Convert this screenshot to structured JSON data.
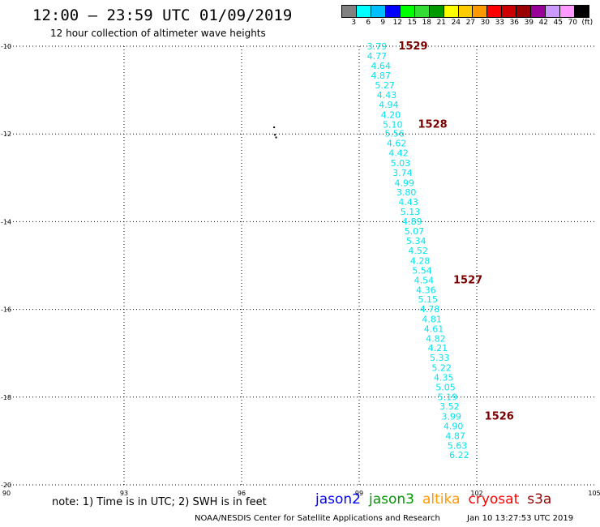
{
  "header": {
    "title": "12:00 – 23:59 UTC 01/09/2019",
    "subtitle": "12 hour collection of altimeter wave heights"
  },
  "legend": {
    "colors": [
      "#808080",
      "#00ffff",
      "#00bfff",
      "#0000ff",
      "#00ff00",
      "#33dd33",
      "#009900",
      "#ffff00",
      "#ffcc00",
      "#ff9900",
      "#ff0000",
      "#cc0000",
      "#990000",
      "#990099",
      "#cc99ff",
      "#ff99ff",
      "#000000"
    ],
    "labels": [
      "3",
      "6",
      "9",
      "12",
      "15",
      "18",
      "21",
      "24",
      "27",
      "30",
      "33",
      "36",
      "39",
      "42",
      "45",
      "70",
      "(ft)"
    ]
  },
  "chart_data": {
    "type": "scatter",
    "x_range": [
      90,
      105
    ],
    "y_range": [
      -20,
      -10
    ],
    "x_ticks": [
      "90",
      "93",
      "96",
      "99",
      "102",
      "105"
    ],
    "y_ticks": [
      "-10",
      "-12",
      "-14",
      "-16",
      "-18",
      "-20"
    ],
    "grid": true,
    "point_color": "#00e5ee",
    "pass_label_color": "#7a0000",
    "points": [
      {
        "lon": 99.2,
        "lat": -10.0,
        "v": "3.79"
      },
      {
        "lon": 99.2,
        "lat": -10.22,
        "v": "4.77"
      },
      {
        "lon": 99.3,
        "lat": -10.44,
        "v": "4.64"
      },
      {
        "lon": 99.3,
        "lat": -10.67,
        "v": "4.87"
      },
      {
        "lon": 99.4,
        "lat": -10.89,
        "v": "5.27"
      },
      {
        "lon": 99.45,
        "lat": -11.11,
        "v": "4.43"
      },
      {
        "lon": 99.5,
        "lat": -11.33,
        "v": "4.94"
      },
      {
        "lon": 99.55,
        "lat": -11.56,
        "v": "4.20"
      },
      {
        "lon": 99.6,
        "lat": -11.78,
        "v": "5.10"
      },
      {
        "lon": 99.65,
        "lat": -11.99,
        "v": "5.56"
      },
      {
        "lon": 99.7,
        "lat": -12.21,
        "v": "4.62"
      },
      {
        "lon": 99.75,
        "lat": -12.43,
        "v": "4.42"
      },
      {
        "lon": 99.8,
        "lat": -12.66,
        "v": "5.03"
      },
      {
        "lon": 99.85,
        "lat": -12.88,
        "v": "3.74"
      },
      {
        "lon": 99.9,
        "lat": -13.11,
        "v": "4.99"
      },
      {
        "lon": 99.95,
        "lat": -13.33,
        "v": "3.80"
      },
      {
        "lon": 100.0,
        "lat": -13.55,
        "v": "4.43"
      },
      {
        "lon": 100.05,
        "lat": -13.77,
        "v": "5.13"
      },
      {
        "lon": 100.1,
        "lat": -13.99,
        "v": "4.89"
      },
      {
        "lon": 100.15,
        "lat": -14.21,
        "v": "5.07"
      },
      {
        "lon": 100.2,
        "lat": -14.44,
        "v": "5.34"
      },
      {
        "lon": 100.25,
        "lat": -14.66,
        "v": "4.52"
      },
      {
        "lon": 100.3,
        "lat": -14.89,
        "v": "4.28"
      },
      {
        "lon": 100.35,
        "lat": -15.11,
        "v": "5.54"
      },
      {
        "lon": 100.4,
        "lat": -15.33,
        "v": "4.54"
      },
      {
        "lon": 100.45,
        "lat": -15.55,
        "v": "4.36"
      },
      {
        "lon": 100.5,
        "lat": -15.77,
        "v": "5.15"
      },
      {
        "lon": 100.55,
        "lat": -15.99,
        "v": "4.78"
      },
      {
        "lon": 100.6,
        "lat": -16.22,
        "v": "4.81"
      },
      {
        "lon": 100.65,
        "lat": -16.44,
        "v": "4.61"
      },
      {
        "lon": 100.7,
        "lat": -16.66,
        "v": "4.82"
      },
      {
        "lon": 100.75,
        "lat": -16.88,
        "v": "4.21"
      },
      {
        "lon": 100.8,
        "lat": -17.1,
        "v": "5.33"
      },
      {
        "lon": 100.85,
        "lat": -17.33,
        "v": "5.22"
      },
      {
        "lon": 100.9,
        "lat": -17.55,
        "v": "4.35"
      },
      {
        "lon": 100.95,
        "lat": -17.77,
        "v": "5.05"
      },
      {
        "lon": 101.0,
        "lat": -17.99,
        "v": "5.19"
      },
      {
        "lon": 101.05,
        "lat": -18.21,
        "v": "3.52"
      },
      {
        "lon": 101.1,
        "lat": -18.44,
        "v": "3.99"
      },
      {
        "lon": 101.15,
        "lat": -18.66,
        "v": "4.90"
      },
      {
        "lon": 101.2,
        "lat": -18.88,
        "v": "4.87"
      },
      {
        "lon": 101.25,
        "lat": -19.1,
        "v": "5.63"
      },
      {
        "lon": 101.3,
        "lat": -19.32,
        "v": "6.22"
      }
    ],
    "pass_labels": [
      {
        "lon": 100.0,
        "lat": -10.0,
        "text": "1529"
      },
      {
        "lon": 100.5,
        "lat": -11.78,
        "text": "1528"
      },
      {
        "lon": 101.4,
        "lat": -15.33,
        "text": "1527"
      },
      {
        "lon": 102.2,
        "lat": -18.44,
        "text": "1526"
      }
    ],
    "islands": [
      {
        "lon": 96.83,
        "lat": -11.85
      },
      {
        "lon": 96.85,
        "lat": -12.02
      },
      {
        "lon": 96.88,
        "lat": -12.08
      }
    ]
  },
  "note": "note: 1) Time is in UTC; 2) SWH is in feet",
  "satellites": [
    {
      "name": "jason2",
      "color": "#0000ff"
    },
    {
      "name": "jason3",
      "color": "#009900"
    },
    {
      "name": "altika",
      "color": "#ff9900"
    },
    {
      "name": "cryosat",
      "color": "#ff0000"
    },
    {
      "name": "s3a",
      "color": "#990000"
    }
  ],
  "footer": {
    "credit": "NOAA/NESDIS Center for Satellite Applications and Research",
    "timestamp": "Jan 10 13:27:53 UTC 2019"
  }
}
